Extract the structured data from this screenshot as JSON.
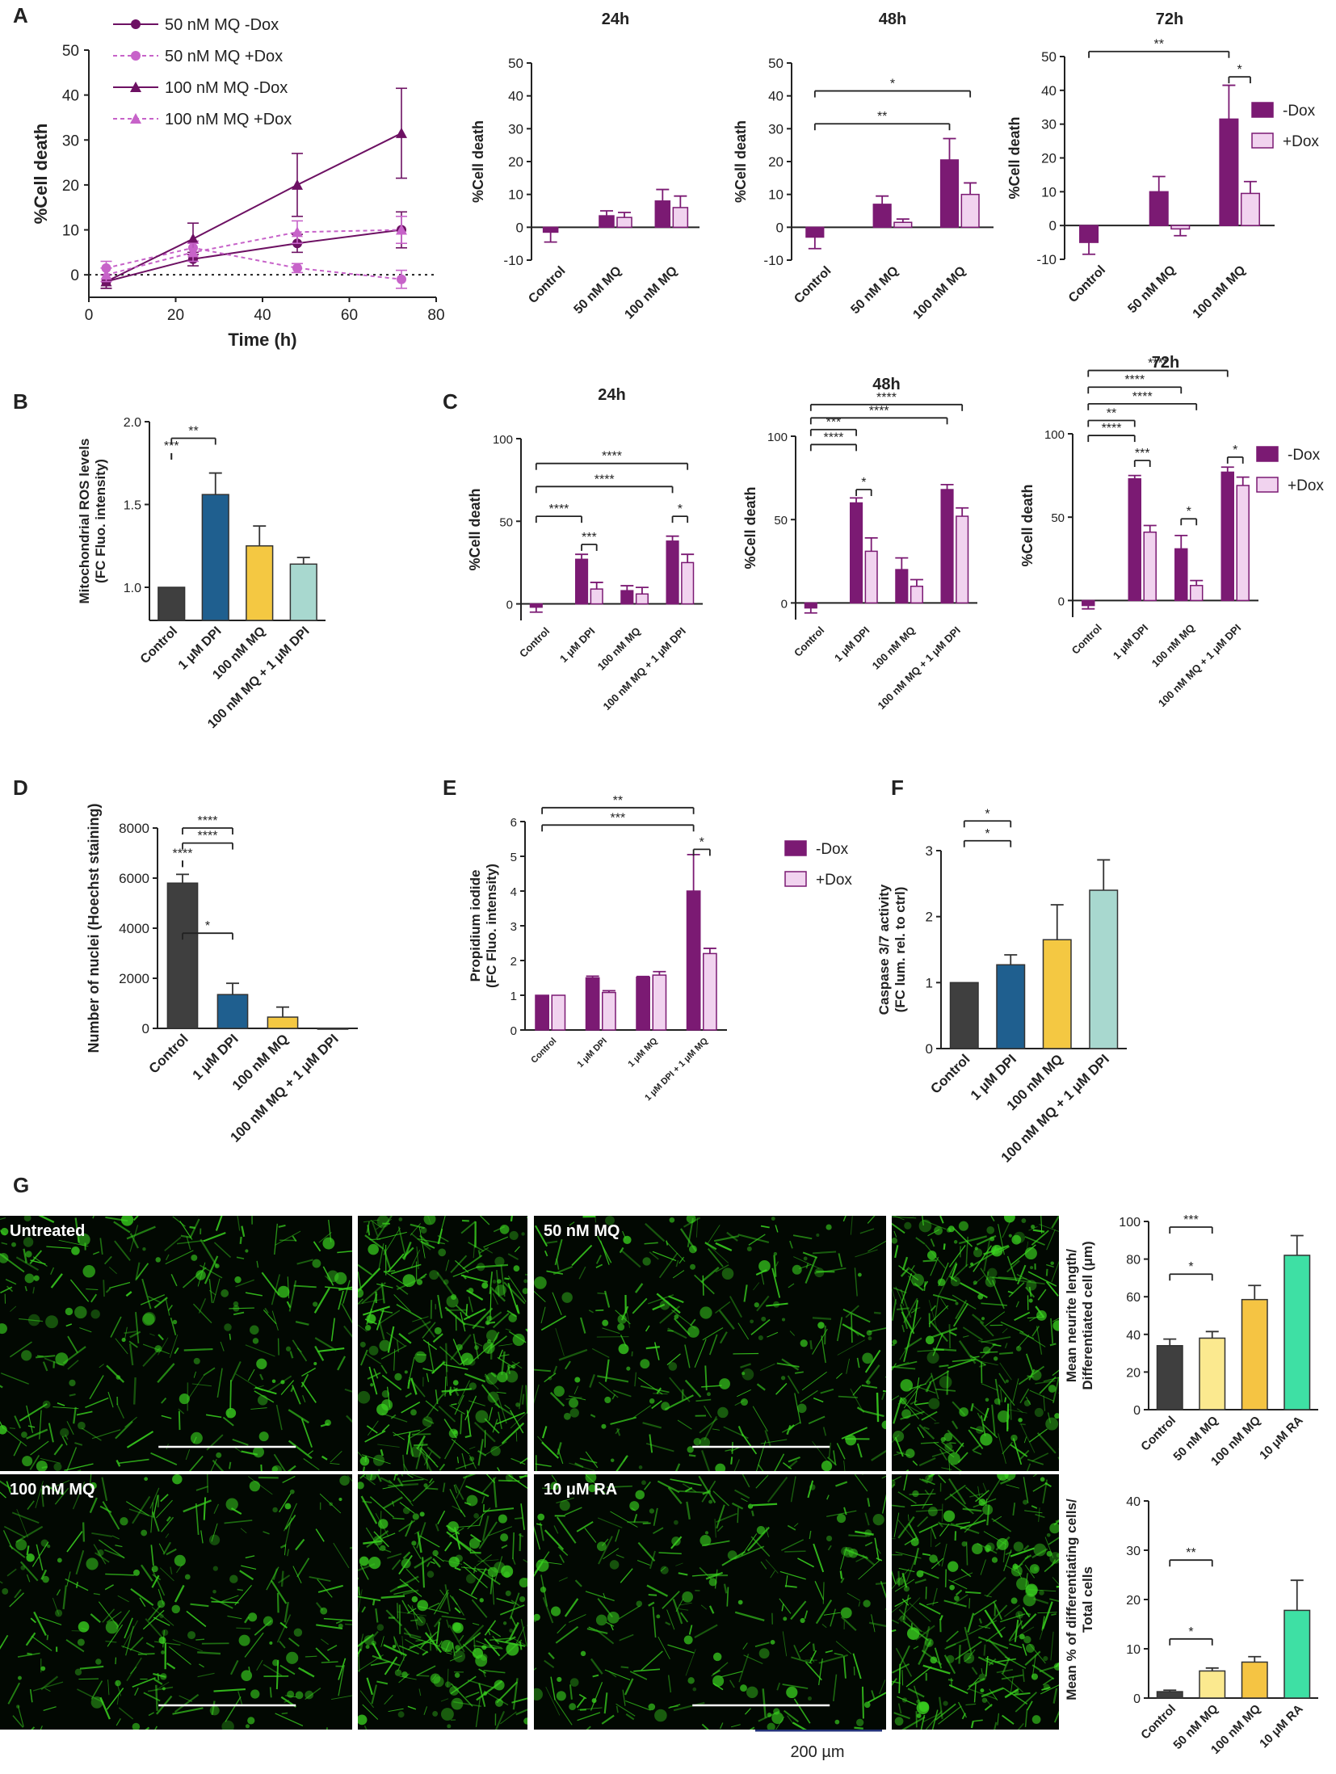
{
  "panel_letters": [
    "A",
    "B",
    "C",
    "D",
    "E",
    "F",
    "G"
  ],
  "colors": {
    "minus_dox": "#7b1a73",
    "plus_dox": "#f1d3ef",
    "line_minus": "#6d1163",
    "line_plus": "#c763c9",
    "control": "#3f3f3f",
    "dpi": "#1f5f8f",
    "mq": "#f4c842",
    "mq_dpi": "#a8d8cf",
    "g_50": "#fbe98f",
    "g_100": "#f5c443",
    "g_ra": "#3ee0a4",
    "photo_green": "#39d11f"
  },
  "chart_data": [
    {
      "id": "A-line",
      "type": "line",
      "xlabel": "Time (h)",
      "ylabel": "%Cell death",
      "xlim": [
        0,
        80
      ],
      "ylim": [
        -5,
        50
      ],
      "xticks": [
        "0",
        "20",
        "40",
        "60",
        "80"
      ],
      "yticks": [
        "0",
        "10",
        "20",
        "30",
        "40",
        "50"
      ],
      "series": [
        {
          "name": "50 nM MQ -Dox",
          "marker": "circle",
          "dashed": false,
          "x": [
            4,
            24,
            48,
            72
          ],
          "y": [
            -1.5,
            3.5,
            7,
            10
          ],
          "err": [
            1.5,
            1.5,
            2,
            4
          ]
        },
        {
          "name": "50 nM MQ +Dox",
          "marker": "circle",
          "dashed": true,
          "x": [
            4,
            24,
            48,
            72
          ],
          "y": [
            1.5,
            6,
            1.5,
            -1
          ],
          "err": [
            1.5,
            1.5,
            1,
            2
          ]
        },
        {
          "name": "100 nM MQ -Dox",
          "marker": "triangle",
          "dashed": false,
          "x": [
            4,
            24,
            48,
            72
          ],
          "y": [
            -1.5,
            8,
            20,
            31.5
          ],
          "err": [
            1.5,
            3.5,
            7,
            10
          ]
        },
        {
          "name": "100 nM MQ +Dox",
          "marker": "triangle",
          "dashed": true,
          "x": [
            4,
            24,
            48,
            72
          ],
          "y": [
            0,
            5,
            9.5,
            10
          ],
          "err": [
            1.5,
            2,
            2.5,
            3
          ]
        }
      ]
    },
    {
      "id": "A-24h",
      "type": "bar",
      "title": "24h",
      "ylabel": "%Cell death",
      "ylim": [
        -10,
        50
      ],
      "yticks": [
        "-10",
        "0",
        "10",
        "20",
        "30",
        "40",
        "50"
      ],
      "categories": [
        "Control",
        "50 nM MQ",
        "100 nM MQ"
      ],
      "series": [
        {
          "name": "-Dox",
          "values": [
            -1.5,
            3.5,
            8
          ],
          "err": [
            3,
            1.5,
            3.5
          ]
        },
        {
          "name": "+Dox",
          "values": [
            null,
            3,
            6
          ],
          "err": [
            null,
            1.5,
            3.5
          ]
        }
      ],
      "sig": []
    },
    {
      "id": "A-48h",
      "type": "bar",
      "title": "48h",
      "ylabel": "%Cell death",
      "ylim": [
        -10,
        50
      ],
      "yticks": [
        "-10",
        "0",
        "10",
        "20",
        "30",
        "40",
        "50"
      ],
      "categories": [
        "Control",
        "50 nM MQ",
        "100 nM MQ"
      ],
      "series": [
        {
          "name": "-Dox",
          "values": [
            -3,
            7,
            20.5
          ],
          "err": [
            3.5,
            2.5,
            6.5
          ]
        },
        {
          "name": "+Dox",
          "values": [
            null,
            1.5,
            10
          ],
          "err": [
            null,
            1,
            3.5
          ]
        }
      ],
      "sig": [
        {
          "from": 0,
          "to": 5,
          "y": 41.5,
          "label": "*"
        },
        {
          "from": 0,
          "to": 4,
          "y": 31.5,
          "label": "**"
        }
      ]
    },
    {
      "id": "A-72h",
      "type": "bar",
      "title": "72h",
      "ylabel": "%Cell death",
      "ylim": [
        -10,
        50
      ],
      "yticks": [
        "-10",
        "0",
        "10",
        "20",
        "30",
        "40",
        "50"
      ],
      "categories": [
        "Control",
        "50 nM MQ",
        "100 nM MQ"
      ],
      "series": [
        {
          "name": "-Dox",
          "values": [
            -5,
            10,
            31.5
          ],
          "err": [
            3.5,
            4.5,
            10
          ]
        },
        {
          "name": "+Dox",
          "values": [
            null,
            -1,
            9.5
          ],
          "err": [
            null,
            2,
            3.5
          ]
        }
      ],
      "legend": [
        "-Dox",
        "+Dox"
      ],
      "sig": [
        {
          "from": 0,
          "to": 4,
          "y": 51.5,
          "label": "**"
        },
        {
          "from": 4,
          "to": 5,
          "y": 44,
          "label": "*"
        }
      ]
    },
    {
      "id": "B",
      "type": "bar",
      "ylabel": "Mitochondrial ROS levels",
      "ylabel2": "(FC Fluo. intensity)",
      "ylim": [
        0.8,
        2.0
      ],
      "yticks": [
        "1.0",
        "1.5",
        "2.0"
      ],
      "ytick_values": [
        1.0,
        1.5,
        2.0
      ],
      "categories": [
        "Control",
        "1 μM DPI",
        "100 nM MQ",
        "100 nM MQ + 1 μM DPI"
      ],
      "values": [
        1.0,
        1.56,
        1.25,
        1.14
      ],
      "err": [
        0,
        0.13,
        0.12,
        0.04
      ],
      "sig": [
        {
          "from": 0,
          "to": 1,
          "y": 1.81,
          "label": "***"
        },
        {
          "from": 1,
          "to": 3,
          "y": 1.9,
          "label": "**"
        }
      ]
    },
    {
      "id": "C-24h",
      "type": "bar",
      "title": "24h",
      "ylabel": "%Cell death",
      "ylim": [
        -10,
        100
      ],
      "yticks": [
        "0",
        "50",
        "100"
      ],
      "ytick_values": [
        0,
        50,
        100
      ],
      "categories": [
        "Control",
        "1 μM DPI",
        "100 nM MQ",
        "100 nM MQ + 1 μM DPI"
      ],
      "series": [
        {
          "name": "-Dox",
          "values": [
            -2,
            27,
            8,
            38
          ],
          "err": [
            3,
            3,
            3,
            3
          ]
        },
        {
          "name": "+Dox",
          "values": [
            null,
            9,
            6,
            25
          ],
          "err": [
            null,
            4,
            4,
            5
          ]
        }
      ],
      "sig": [
        {
          "from": 0,
          "to": 2,
          "y": 53,
          "label": "****"
        },
        {
          "from": 0,
          "to": 6,
          "y": 71,
          "label": "****"
        },
        {
          "from": 0,
          "to": 7,
          "y": 85,
          "label": "****"
        },
        {
          "from": 2,
          "to": 3,
          "y": 36,
          "label": "***"
        },
        {
          "from": 6,
          "to": 7,
          "y": 53,
          "label": "*"
        }
      ]
    },
    {
      "id": "C-48h",
      "type": "bar",
      "title": "48h",
      "ylabel": "%Cell death",
      "ylim": [
        -10,
        100
      ],
      "yticks": [
        "0",
        "50",
        "100"
      ],
      "ytick_values": [
        0,
        50,
        100
      ],
      "categories": [
        "Control",
        "1 μM DPI",
        "100 nM MQ",
        "100 nM MQ + 1 μM DPI"
      ],
      "series": [
        {
          "name": "-Dox",
          "values": [
            -3,
            60,
            20,
            68
          ],
          "err": [
            3,
            3,
            7,
            3
          ]
        },
        {
          "name": "+Dox",
          "values": [
            null,
            31,
            10,
            52
          ],
          "err": [
            null,
            8,
            4,
            5
          ]
        }
      ],
      "sig": [
        {
          "from": 0,
          "to": 2,
          "y": 95,
          "label": "****"
        },
        {
          "from": 0,
          "to": 2,
          "y": 104,
          "label": "***"
        },
        {
          "from": 0,
          "to": 6,
          "y": 111,
          "label": "****"
        },
        {
          "from": 0,
          "to": 8,
          "y": 119,
          "label": "****"
        },
        {
          "from": 2,
          "to": 3,
          "y": 68,
          "label": "*"
        }
      ]
    },
    {
      "id": "C-72h",
      "type": "bar",
      "title": "72h",
      "ylabel": "%Cell death",
      "ylim": [
        -10,
        100
      ],
      "yticks": [
        "0",
        "50",
        "100"
      ],
      "ytick_values": [
        0,
        50,
        100
      ],
      "categories": [
        "Control",
        "1 μM DPI",
        "100 nM MQ",
        "100 nM MQ + 1 μM DPI"
      ],
      "series": [
        {
          "name": "-Dox",
          "values": [
            -3,
            73,
            31,
            77
          ],
          "err": [
            2,
            2,
            8,
            3
          ]
        },
        {
          "name": "+Dox",
          "values": [
            null,
            41,
            9,
            69
          ],
          "err": [
            null,
            4,
            3,
            5
          ]
        }
      ],
      "legend": [
        "-Dox",
        "+Dox"
      ],
      "sig": [
        {
          "from": 0,
          "to": 2,
          "y": 99,
          "label": "****"
        },
        {
          "from": 0,
          "to": 4,
          "y": 128,
          "label": "****"
        },
        {
          "from": 0,
          "to": 6,
          "y": 138,
          "label": "****"
        },
        {
          "from": 0,
          "to": 5,
          "y": 118,
          "label": "****"
        },
        {
          "from": 0,
          "to": 2,
          "y": 108,
          "label": "**"
        },
        {
          "from": 2,
          "to": 3,
          "y": 84,
          "label": "***"
        },
        {
          "from": 4,
          "to": 5,
          "y": 49,
          "label": "*"
        },
        {
          "from": 6,
          "to": 7,
          "y": 86,
          "label": "*"
        }
      ]
    },
    {
      "id": "D",
      "type": "bar",
      "ylabel": "Number of nuclei (Hoechst staining)",
      "ylim": [
        0,
        8000
      ],
      "yticks": [
        "0",
        "2000",
        "4000",
        "6000",
        "8000"
      ],
      "ytick_values": [
        0,
        2000,
        4000,
        6000,
        8000
      ],
      "categories": [
        "Control",
        "1 μM DPI",
        "100 nM MQ",
        "100 nM MQ + 1 μM DPI"
      ],
      "values": [
        5800,
        1350,
        450,
        0
      ],
      "err": [
        350,
        450,
        400,
        0
      ],
      "sig": [
        {
          "from": 0,
          "to": 1,
          "y": 6700,
          "label": "****"
        },
        {
          "from": 0,
          "to": 2,
          "y": 7400,
          "label": "****"
        },
        {
          "from": 0,
          "to": 3,
          "y": 8000,
          "label": "****"
        },
        {
          "from": 1,
          "to": 3,
          "y": 3800,
          "label": "*"
        }
      ]
    },
    {
      "id": "E",
      "type": "bar",
      "ylabel": "Propidium iodide",
      "ylabel2": "(FC Fluo. intensity)",
      "ylim": [
        0,
        6
      ],
      "yticks": [
        "0",
        "1",
        "2",
        "3",
        "4",
        "5",
        "6"
      ],
      "ytick_values": [
        0,
        1,
        2,
        3,
        4,
        5,
        6
      ],
      "categories": [
        "Control",
        "1 μM DPI",
        "1 μM MQ",
        "1 μM DPI + 1 μM MQ"
      ],
      "series": [
        {
          "name": "-Dox",
          "values": [
            1,
            1.5,
            1.52,
            4
          ],
          "err": [
            0,
            0.05,
            0.02,
            1.05
          ]
        },
        {
          "name": "+Dox",
          "values": [
            1,
            1.08,
            1.58,
            2.2
          ],
          "err": [
            0,
            0.05,
            0.1,
            0.15
          ]
        }
      ],
      "legend": [
        "-Dox",
        "+Dox"
      ],
      "sig": [
        {
          "from": 0,
          "to": 6,
          "y": 6.4,
          "label": "**"
        },
        {
          "from": 0,
          "to": 6,
          "y": 5.9,
          "label": "***"
        },
        {
          "from": 6,
          "to": 7,
          "y": 5.2,
          "label": "*"
        }
      ]
    },
    {
      "id": "F",
      "type": "bar",
      "ylabel": "Caspase 3/7 activity",
      "ylabel2": "(FC lum. rel. to ctrl)",
      "ylim": [
        0,
        3
      ],
      "yticks": [
        "0",
        "1",
        "2",
        "3"
      ],
      "ytick_values": [
        0,
        1,
        2,
        3
      ],
      "categories": [
        "Control",
        "1 μM DPI",
        "100 nM MQ",
        "100 nM MQ + 1 μM DPI"
      ],
      "values": [
        1.0,
        1.27,
        1.65,
        2.4
      ],
      "err": [
        0,
        0.15,
        0.53,
        0.46
      ],
      "sig": [
        {
          "from": 0,
          "to": 3,
          "y": 3.45,
          "label": "*"
        },
        {
          "from": 1,
          "to": 3,
          "y": 3.15,
          "label": "*"
        }
      ]
    },
    {
      "id": "G-top",
      "type": "bar",
      "ylabel": "Mean neurite length/",
      "ylabel2": "Differentiated cell (μm)",
      "ylim": [
        0,
        100
      ],
      "yticks": [
        "0",
        "20",
        "40",
        "60",
        "80",
        "100"
      ],
      "ytick_values": [
        0,
        20,
        40,
        60,
        80,
        100
      ],
      "categories": [
        "Control",
        "50 nM MQ",
        "100 nM MQ",
        "10 μM RA"
      ],
      "values": [
        34,
        38,
        58.5,
        82
      ],
      "err": [
        3.5,
        3.5,
        7.5,
        10.5
      ],
      "sig": [
        {
          "from": 0,
          "to": 2,
          "y": 72,
          "label": "*"
        },
        {
          "from": 0,
          "to": 3,
          "y": 97,
          "label": "***"
        }
      ]
    },
    {
      "id": "G-bottom",
      "type": "bar",
      "ylabel": "Mean % of differentiating cells/",
      "ylabel2": "Total cells",
      "ylim": [
        0,
        40
      ],
      "yticks": [
        "0",
        "10",
        "20",
        "30",
        "40"
      ],
      "ytick_values": [
        0,
        10,
        20,
        30,
        40
      ],
      "categories": [
        "Control",
        "50 nM MQ",
        "100 nM MQ",
        "10 μM RA"
      ],
      "values": [
        1.3,
        5.5,
        7.3,
        17.8
      ],
      "err": [
        0.3,
        0.6,
        1.1,
        6.1
      ],
      "sig": [
        {
          "from": 0,
          "to": 2,
          "y": 12,
          "label": "*"
        },
        {
          "from": 0,
          "to": 3,
          "y": 28,
          "label": "**"
        }
      ]
    }
  ],
  "photos": {
    "labels": [
      "Untreated",
      "50 nM MQ",
      "100 nM MQ",
      "10 μM RA"
    ],
    "scale_bar": "200 µm"
  }
}
